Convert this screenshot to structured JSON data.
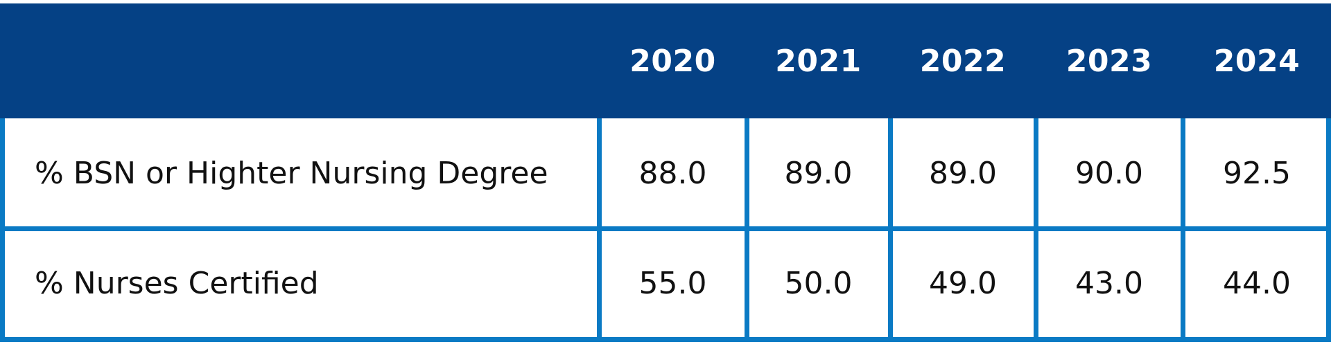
{
  "chart_data": {
    "type": "table",
    "columns": [
      "",
      "2020",
      "2021",
      "2022",
      "2023",
      "2024"
    ],
    "rows": [
      {
        "label": "% BSN or Highter Nursing Degree",
        "values": [
          "88.0",
          "89.0",
          "89.0",
          "90.0",
          "92.5"
        ]
      },
      {
        "label": "% Nurses Certified",
        "values": [
          "55.0",
          "50.0",
          "49.0",
          "43.0",
          "44.0"
        ]
      }
    ],
    "header_color": "#054185",
    "grid_color": "#0a7ac4"
  }
}
